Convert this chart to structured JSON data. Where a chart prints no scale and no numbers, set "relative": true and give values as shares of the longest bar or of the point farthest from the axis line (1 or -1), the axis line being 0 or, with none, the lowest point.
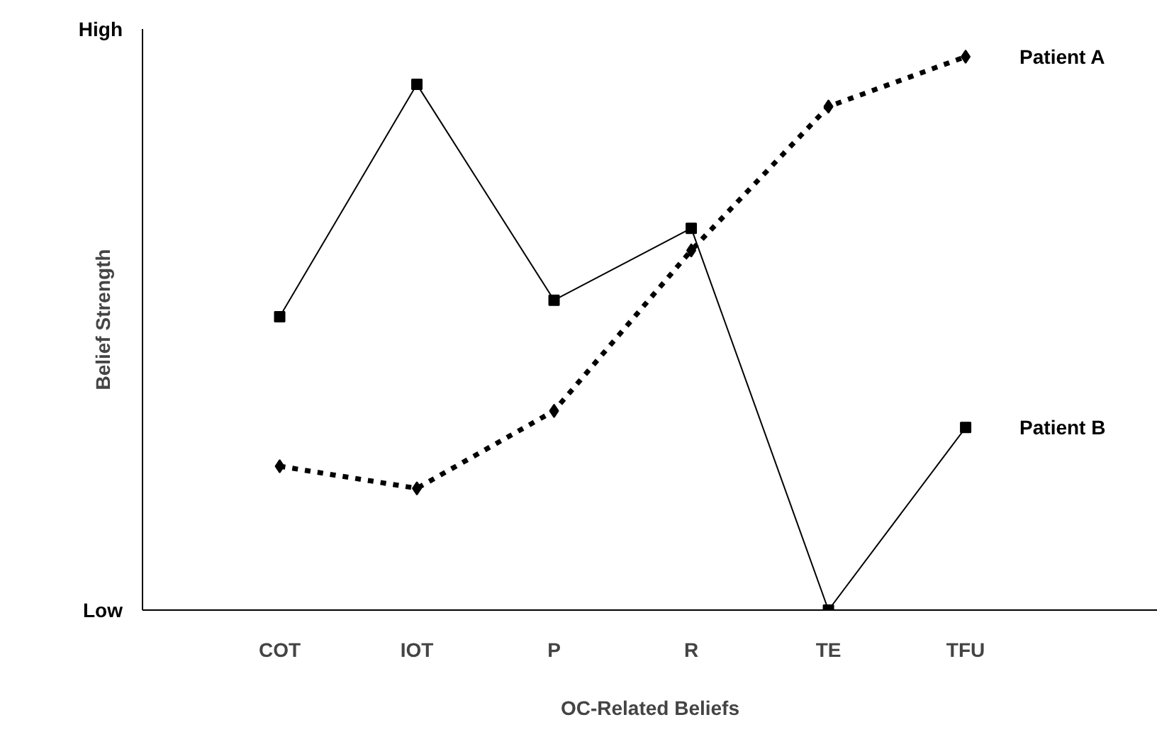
{
  "chart_data": {
    "type": "line",
    "relative": true,
    "xlabel": "OC-Related Beliefs",
    "ylabel": "Belief Strength",
    "categories": [
      "COT",
      "IOT",
      "P",
      "R",
      "TE",
      "TFU"
    ],
    "series": [
      {
        "name": "Patient A",
        "color": "#000000",
        "marker": "diamond",
        "line_style": "dotted",
        "values": [
          0.26,
          0.22,
          0.36,
          0.65,
          0.91,
          1
        ]
      },
      {
        "name": "Patient B",
        "color": "#000000",
        "marker": "square",
        "line_style": "solid",
        "values": [
          0.53,
          0.95,
          0.56,
          0.69,
          0,
          0.33
        ]
      }
    ],
    "annotations": [
      "High",
      "Low"
    ],
    "grid": false
  }
}
